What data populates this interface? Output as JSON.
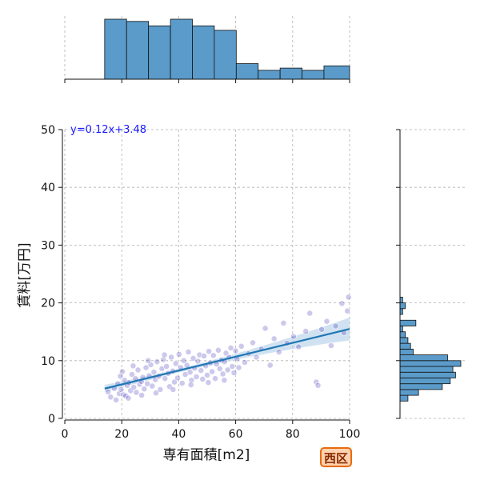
{
  "chart_data": {
    "type": "scatter",
    "xlabel": "専有面積[m2]",
    "ylabel": "賃料[万円]",
    "xlim": [
      0,
      100
    ],
    "ylim": [
      0,
      50
    ],
    "xticks": [
      0,
      20,
      40,
      60,
      80,
      100
    ],
    "yticks": [
      0,
      10,
      20,
      30,
      40,
      50
    ],
    "grid": true,
    "regression": {
      "equation": "y=0.12x+3.48",
      "slope": 0.12,
      "intercept": 3.48,
      "x_range": [
        14,
        100
      ]
    },
    "marginal_x_hist": {
      "bin_edges": [
        0,
        14,
        21.7,
        29.4,
        37.1,
        44.8,
        52.5,
        60.2,
        67.9,
        75.6,
        83.3,
        91,
        100
      ],
      "counts": [
        0,
        27,
        26,
        24,
        27,
        24,
        22,
        7,
        4,
        5,
        4,
        6
      ]
    },
    "marginal_y_hist": {
      "bin_edges": [
        3,
        4,
        5,
        6,
        7,
        8,
        9,
        10,
        11,
        12,
        13,
        14,
        15,
        16,
        17,
        18,
        19,
        20,
        21
      ],
      "counts": [
        3,
        7,
        16,
        19,
        21,
        20,
        23,
        18,
        5,
        4,
        3,
        2,
        1,
        6,
        0,
        1,
        2,
        1
      ]
    },
    "series": [
      {
        "points": [
          [
            15.2,
            4.6
          ],
          [
            16.1,
            3.7
          ],
          [
            17.4,
            5.2
          ],
          [
            18.0,
            3.2
          ],
          [
            18.6,
            6.0
          ],
          [
            19.1,
            4.3
          ],
          [
            19.5,
            7.3
          ],
          [
            19.8,
            5.0
          ],
          [
            20.2,
            8.1
          ],
          [
            20.6,
            4.1
          ],
          [
            21.0,
            6.6
          ],
          [
            21.4,
            3.9
          ],
          [
            22.0,
            5.7
          ],
          [
            22.5,
            6.2
          ],
          [
            23.1,
            4.8
          ],
          [
            23.6,
            7.6
          ],
          [
            24.2,
            5.4
          ],
          [
            24.8,
            6.9
          ],
          [
            25.1,
            4.5
          ],
          [
            25.7,
            8.4
          ],
          [
            26.3,
            5.9
          ],
          [
            26.9,
            6.4
          ],
          [
            27.4,
            7.1
          ],
          [
            27.9,
            5.1
          ],
          [
            28.5,
            8.8
          ],
          [
            29.0,
            6.0
          ],
          [
            29.6,
            7.4
          ],
          [
            30.2,
            9.3
          ],
          [
            30.7,
            5.6
          ],
          [
            31.3,
            8.0
          ],
          [
            31.8,
            6.7
          ],
          [
            32.4,
            9.8
          ],
          [
            33.0,
            7.3
          ],
          [
            33.5,
            5.0
          ],
          [
            34.1,
            8.6
          ],
          [
            34.6,
            10.2
          ],
          [
            35.2,
            6.9
          ],
          [
            35.7,
            9.0
          ],
          [
            36.3,
            7.8
          ],
          [
            36.8,
            5.5
          ],
          [
            37.4,
            10.6
          ],
          [
            37.9,
            8.2
          ],
          [
            38.5,
            6.3
          ],
          [
            39.0,
            9.5
          ],
          [
            39.6,
            7.0
          ],
          [
            40.1,
            11.1
          ],
          [
            40.7,
            8.8
          ],
          [
            41.2,
            6.1
          ],
          [
            41.8,
            10.0
          ],
          [
            42.3,
            7.6
          ],
          [
            42.9,
            9.2
          ],
          [
            43.4,
            11.5
          ],
          [
            44.0,
            8.0
          ],
          [
            44.5,
            6.6
          ],
          [
            45.1,
            10.4
          ],
          [
            45.6,
            8.7
          ],
          [
            46.2,
            7.2
          ],
          [
            46.7,
            9.9
          ],
          [
            47.3,
            11.0
          ],
          [
            47.8,
            8.3
          ],
          [
            48.4,
            6.8
          ],
          [
            48.9,
            10.8
          ],
          [
            49.5,
            9.1
          ],
          [
            50.0,
            7.5
          ],
          [
            50.6,
            11.6
          ],
          [
            51.1,
            9.6
          ],
          [
            51.7,
            8.1
          ],
          [
            52.2,
            10.9
          ],
          [
            52.8,
            6.9
          ],
          [
            53.3,
            9.4
          ],
          [
            53.9,
            11.8
          ],
          [
            54.4,
            8.6
          ],
          [
            55.0,
            10.1
          ],
          [
            55.5,
            7.7
          ],
          [
            56.1,
            9.8
          ],
          [
            56.6,
            11.3
          ],
          [
            57.2,
            8.4
          ],
          [
            57.7,
            10.6
          ],
          [
            58.3,
            12.2
          ],
          [
            58.8,
            9.0
          ],
          [
            59.4,
            7.9
          ],
          [
            60.0,
            11.7
          ],
          [
            60.5,
            10.3
          ],
          [
            61.1,
            8.8
          ],
          [
            62.0,
            12.5
          ],
          [
            63.2,
            9.7
          ],
          [
            64.5,
            11.2
          ],
          [
            66.0,
            13.1
          ],
          [
            67.3,
            10.6
          ],
          [
            69.0,
            12.0
          ],
          [
            70.4,
            15.6
          ],
          [
            72.1,
            9.2
          ],
          [
            73.5,
            13.8
          ],
          [
            75.2,
            11.5
          ],
          [
            76.8,
            16.5
          ],
          [
            78.0,
            13.0
          ],
          [
            80.3,
            14.2
          ],
          [
            82.1,
            12.4
          ],
          [
            84.6,
            15.1
          ],
          [
            86.0,
            18.2
          ],
          [
            88.3,
            6.3
          ],
          [
            88.9,
            5.7
          ],
          [
            90.2,
            15.4
          ],
          [
            92.0,
            16.8
          ],
          [
            93.5,
            12.6
          ],
          [
            95.1,
            16.0
          ],
          [
            97.3,
            19.9
          ],
          [
            98.0,
            14.8
          ],
          [
            99.2,
            18.6
          ],
          [
            99.6,
            21.0
          ],
          [
            22.3,
            3.5
          ],
          [
            27.0,
            4.0
          ],
          [
            32.0,
            4.4
          ],
          [
            38.0,
            5.0
          ],
          [
            44.3,
            5.8
          ],
          [
            50.4,
            6.2
          ],
          [
            56.0,
            6.6
          ],
          [
            24.0,
            9.1
          ],
          [
            29.3,
            10.0
          ],
          [
            35.0,
            11.0
          ]
        ]
      }
    ]
  },
  "labels": {
    "x_ticks": [
      "0",
      "20",
      "40",
      "60",
      "80",
      "100"
    ],
    "y_ticks": [
      "0",
      "10",
      "20",
      "30",
      "40",
      "50"
    ],
    "equation": "y=0.12x+3.48",
    "xlabel": "専有面積[m2]",
    "ylabel": "賃料[万円]",
    "badge": "西区"
  },
  "colors": {
    "scatter_fill": "#1a0aa8",
    "regression_line": "#1f77b4",
    "ci_band": "#a9cbe6",
    "hist_fill": "#5a9bca",
    "equation_text": "#1a1aff",
    "badge_bg": "#ffd2b0",
    "badge_border": "#e86a10"
  }
}
